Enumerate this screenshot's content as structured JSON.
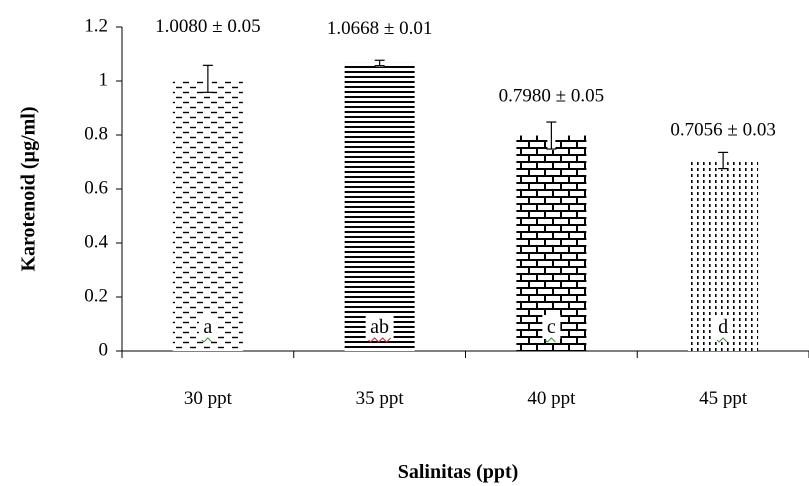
{
  "chart_data": {
    "type": "bar",
    "title": "",
    "xlabel": "Salinitas (ppt)",
    "ylabel": "Karotenoid (µg/ml)",
    "ylim": [
      0,
      1.2
    ],
    "yticks": [
      "0",
      "0.2",
      "0.4",
      "0.6",
      "0.8",
      "1",
      "1.2"
    ],
    "grid": false,
    "categories": [
      "30 ppt",
      "35 ppt",
      "40 ppt",
      "45 ppt"
    ],
    "values": [
      1.008,
      1.0668,
      0.798,
      0.7056
    ],
    "errors": [
      0.05,
      0.01,
      0.05,
      0.03
    ],
    "value_labels": [
      "1.0080 ± 0.05",
      "1.0668 ± 0.01",
      "0.7980 ± 0.05",
      "0.7056 ± 0.03"
    ],
    "significance_letters": [
      "a",
      "ab",
      "c",
      "d"
    ],
    "patterns": [
      "dashed-horizontal",
      "horizontal-lines",
      "brick",
      "dotted-vertical"
    ],
    "colors": {
      "bar_pattern": "#000000",
      "background": "#ffffff",
      "squiggle_green": "#3a9a3a",
      "squiggle_red": "#d42020"
    }
  }
}
